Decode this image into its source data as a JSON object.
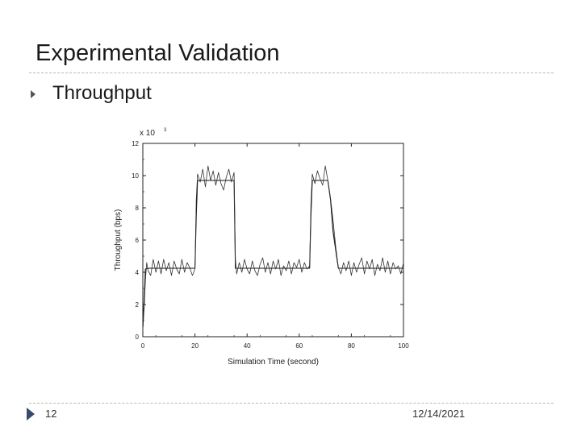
{
  "slide": {
    "title": "Experimental Validation",
    "bullet": "Throughput",
    "page_number": "12",
    "date": "12/14/2021"
  },
  "chart_data": {
    "type": "line",
    "title": "",
    "xlabel": "Simulation Time (second)",
    "ylabel": "Throughput (bps)",
    "y_multiplier_label": "x 10",
    "y_multiplier_exponent": "3",
    "xlim": [
      0,
      100
    ],
    "ylim": [
      0,
      12
    ],
    "x_ticks": [
      "0",
      "20",
      "40",
      "60",
      "80",
      "100"
    ],
    "y_ticks": [
      "0",
      "2",
      "4",
      "6",
      "8",
      "10",
      "12"
    ],
    "grid": false,
    "series": [
      {
        "name": "",
        "style": "solid",
        "x": [
          0,
          0.5,
          1,
          2,
          20,
          20.5,
          21,
          35,
          35.5,
          36,
          64,
          64.5,
          65,
          71,
          72,
          73,
          75,
          100
        ],
        "y": [
          0.6,
          2.2,
          4.2,
          4.25,
          4.25,
          7.5,
          9.7,
          9.7,
          4.25,
          4.25,
          4.25,
          7.5,
          9.7,
          9.7,
          8.5,
          6.5,
          4.25,
          4.25
        ]
      },
      {
        "name": "",
        "style": "noisy",
        "x": [
          0,
          0.5,
          1,
          1.5,
          2,
          3,
          4,
          5,
          6,
          7,
          8,
          9,
          10,
          11,
          12,
          13,
          14,
          15,
          16,
          17,
          18,
          19,
          20,
          20.5,
          21,
          22,
          23,
          24,
          25,
          26,
          27,
          28,
          29,
          30,
          31,
          32,
          33,
          34,
          35,
          35.5,
          36,
          37,
          38,
          39,
          40,
          41,
          42,
          43,
          44,
          45,
          46,
          47,
          48,
          49,
          50,
          51,
          52,
          53,
          54,
          55,
          56,
          57,
          58,
          59,
          60,
          61,
          62,
          63,
          64,
          64.5,
          65,
          66,
          67,
          68,
          69,
          70,
          71,
          72,
          73,
          74,
          75,
          76,
          77,
          78,
          79,
          80,
          81,
          82,
          83,
          84,
          85,
          86,
          87,
          88,
          89,
          90,
          91,
          92,
          93,
          94,
          95,
          96,
          97,
          98,
          99,
          100
        ],
        "y": [
          0.4,
          1.8,
          3.5,
          4.6,
          4.1,
          3.8,
          4.8,
          4.0,
          4.7,
          3.9,
          4.8,
          4.1,
          4.6,
          3.8,
          4.7,
          4.2,
          3.9,
          4.8,
          4.0,
          4.6,
          4.3,
          3.8,
          4.2,
          8.5,
          10.1,
          9.6,
          10.4,
          9.3,
          10.6,
          9.7,
          10.3,
          9.4,
          10.2,
          9.5,
          9.1,
          9.9,
          10.4,
          9.6,
          10.2,
          4.8,
          3.9,
          4.6,
          4.0,
          4.8,
          4.2,
          3.9,
          4.7,
          4.1,
          3.8,
          4.5,
          4.9,
          4.0,
          4.6,
          3.9,
          4.7,
          4.2,
          4.8,
          3.8,
          4.4,
          4.1,
          4.7,
          3.9,
          4.6,
          4.3,
          4.8,
          4.0,
          4.6,
          4.2,
          4.4,
          8.2,
          10.1,
          9.5,
          10.3,
          9.8,
          9.4,
          10.6,
          9.7,
          8.6,
          7.2,
          5.6,
          4.3,
          3.9,
          4.6,
          4.1,
          4.7,
          3.8,
          4.6,
          4.0,
          4.5,
          4.9,
          3.9,
          4.7,
          4.2,
          4.8,
          3.8,
          4.5,
          4.1,
          4.9,
          4.0,
          4.7,
          3.9,
          4.6,
          4.2,
          4.4,
          3.9,
          4.6
        ]
      }
    ]
  }
}
